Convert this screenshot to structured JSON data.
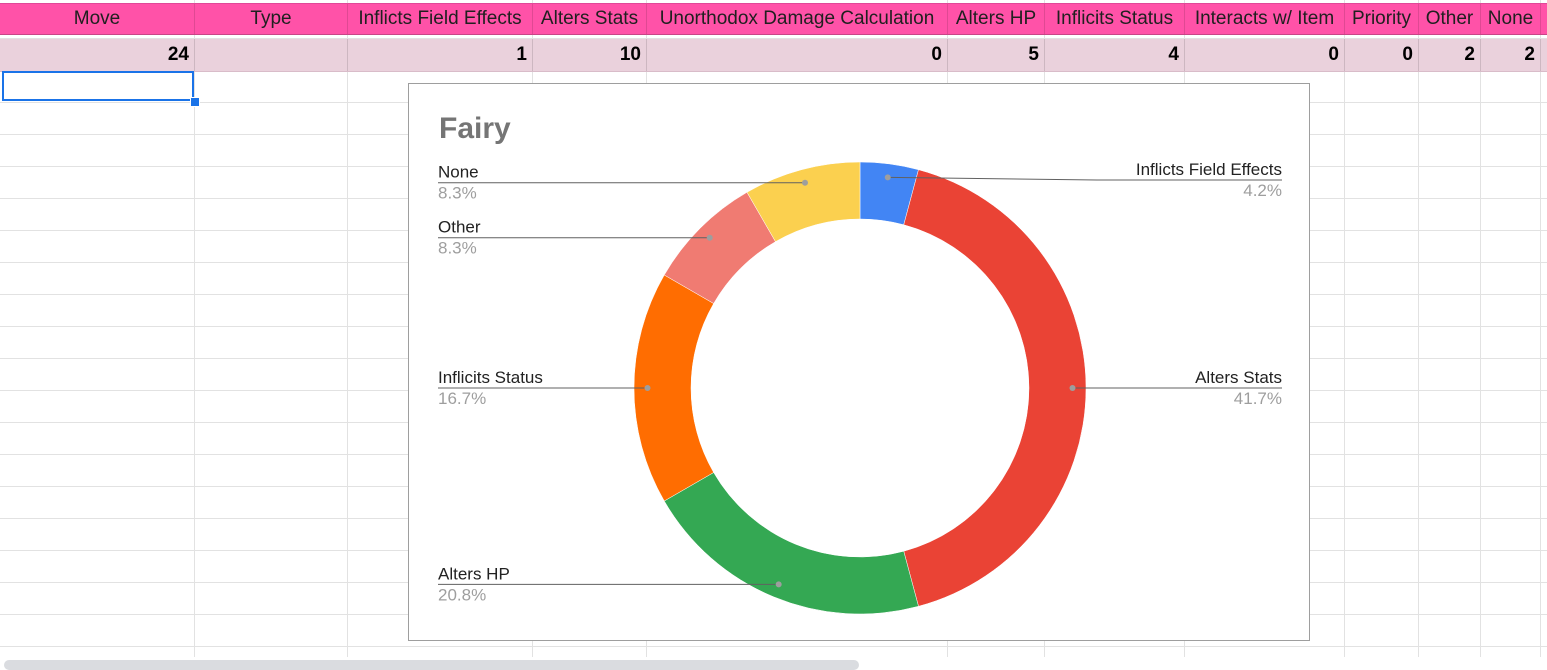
{
  "sheet": {
    "header_cells": [
      {
        "label": "Move",
        "col": 0
      },
      {
        "label": "Type",
        "col": 1
      },
      {
        "label": "Inflicts Field Effects",
        "col": 2
      },
      {
        "label": "Alters Stats",
        "col": 3
      },
      {
        "label": "Unorthodox Damage Calculation",
        "col": 4
      },
      {
        "label": "Alters HP",
        "col": 5
      },
      {
        "label": "Inflicits Status",
        "col": 6
      },
      {
        "label": "Interacts w/ Item",
        "col": 7
      },
      {
        "label": "Priority",
        "col": 8
      },
      {
        "label": "Other",
        "col": 9
      },
      {
        "label": "None",
        "col": 10
      }
    ],
    "data_cells": [
      "24",
      "",
      "1",
      "10",
      "0",
      "5",
      "4",
      "0",
      "0",
      "2",
      "2"
    ],
    "colors": {
      "header_fill": "#ff52a8",
      "data_fill": "#ead1dc",
      "selection": "#1a73e8"
    }
  },
  "chart_data": {
    "type": "pie",
    "donut": true,
    "title": "Fairy",
    "slices": [
      {
        "label": "Inflicts Field Effects",
        "value": 1,
        "percent_label": "4.2%",
        "color": "#4285f4"
      },
      {
        "label": "Alters Stats",
        "value": 10,
        "percent_label": "41.7%",
        "color": "#ea4335"
      },
      {
        "label": "Alters HP",
        "value": 5,
        "percent_label": "20.8%",
        "color": "#34a853"
      },
      {
        "label": "Inflicits Status",
        "value": 4,
        "percent_label": "16.7%",
        "color": "#ff6d01"
      },
      {
        "label": "Other",
        "value": 2,
        "percent_label": "8.3%",
        "color": "#f07b72"
      },
      {
        "label": "None",
        "value": 2,
        "percent_label": "8.3%",
        "color": "#fbd04f"
      }
    ],
    "legend": "leader-lines",
    "label_sides": [
      "right",
      "right",
      "left",
      "left",
      "left",
      "left"
    ]
  }
}
